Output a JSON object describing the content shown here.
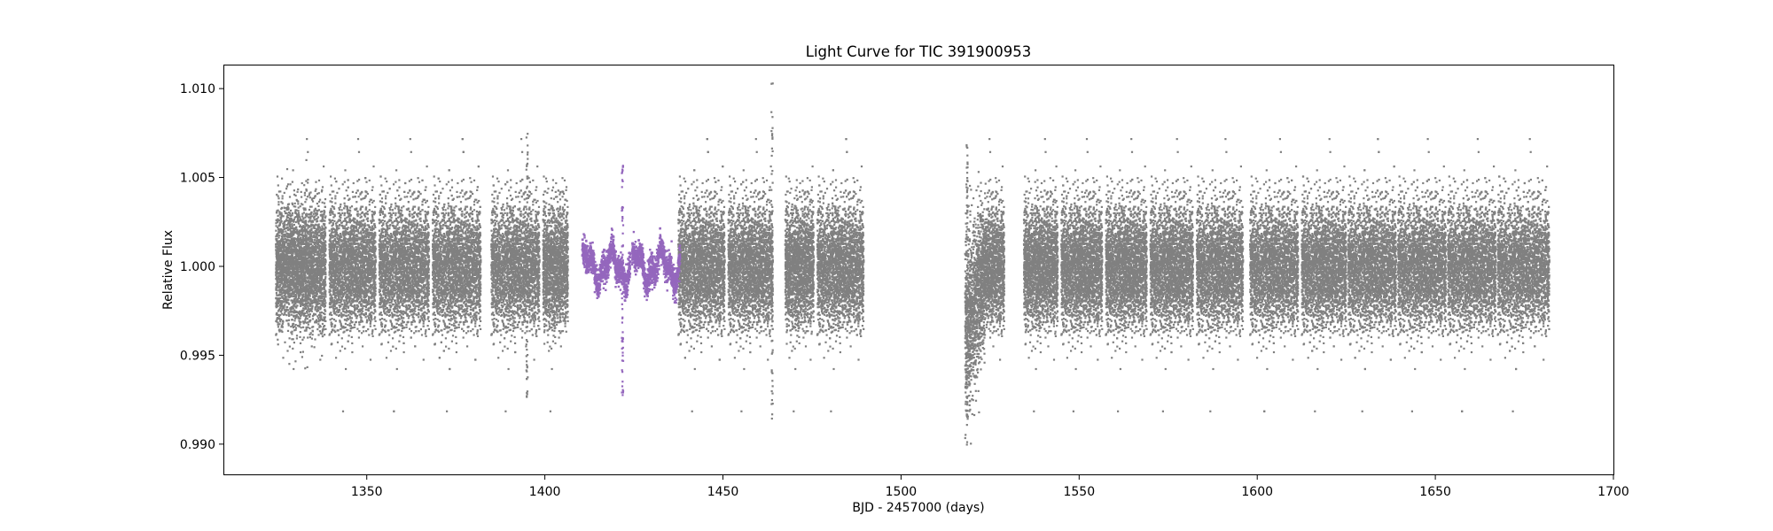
{
  "chart_data": {
    "type": "scatter",
    "title": "Light Curve for TIC 391900953",
    "xlabel": "BJD - 2457000 (days)",
    "ylabel": "Relative Flux",
    "xlim": [
      1310,
      1700
    ],
    "ylim": [
      0.9883,
      1.0113
    ],
    "x_ticks": [
      1350,
      1400,
      1450,
      1500,
      1550,
      1600,
      1650,
      1700
    ],
    "y_ticks": [
      0.99,
      0.995,
      1.0,
      1.005,
      1.01
    ],
    "x_tick_labels": [
      "1350",
      "1400",
      "1450",
      "1500",
      "1550",
      "1600",
      "1650",
      "1700"
    ],
    "y_tick_labels": [
      "0.990",
      "0.995",
      "1.000",
      "1.005",
      "1.010"
    ],
    "grid": false,
    "legend": "none",
    "colors": {
      "background_series": "#808080",
      "highlight_series": "#9467bd"
    },
    "series": [
      {
        "role": "background",
        "color": "#808080",
        "segments": [
          [
            1324.5,
            1338.5
          ],
          [
            1339.5,
            1352.5
          ],
          [
            1353.5,
            1367.5
          ],
          [
            1368.5,
            1382.0
          ],
          [
            1385.0,
            1398.5
          ],
          [
            1399.5,
            1406.5
          ],
          [
            1437.5,
            1450.5
          ],
          [
            1451.5,
            1464.0
          ],
          [
            1467.5,
            1475.5
          ],
          [
            1476.5,
            1489.5
          ],
          [
            1518.0,
            1529.0
          ],
          [
            1534.5,
            1544.0
          ],
          [
            1545.0,
            1556.5
          ],
          [
            1557.5,
            1569.0
          ],
          [
            1570.0,
            1582.0
          ],
          [
            1583.0,
            1596.0
          ],
          [
            1598.0,
            1611.5
          ],
          [
            1612.5,
            1625.0
          ],
          [
            1625.5,
            1639.0
          ],
          [
            1639.5,
            1653.0
          ],
          [
            1653.5,
            1667.0
          ],
          [
            1667.5,
            1682.0
          ]
        ],
        "scatter_sigma": 0.0017
      },
      {
        "role": "highlight",
        "color": "#9467bd",
        "segments": [
          [
            1410.5,
            1424.0
          ],
          [
            1424.5,
            1438.0
          ]
        ],
        "scatter_sigma": 0.0004
      }
    ],
    "features": [
      {
        "x": 1421.8,
        "y_min": 0.9927,
        "y_max": 1.006,
        "series": "highlight"
      },
      {
        "x": 1395.0,
        "y_min": 0.9925,
        "y_max": 1.0075,
        "series": "background"
      },
      {
        "x": 1463.8,
        "y_min": 0.991,
        "y_max": 1.0103,
        "series": "background"
      },
      {
        "x": 1518.5,
        "y_min": 0.9915,
        "y_max": 1.007,
        "series": "background"
      }
    ]
  }
}
